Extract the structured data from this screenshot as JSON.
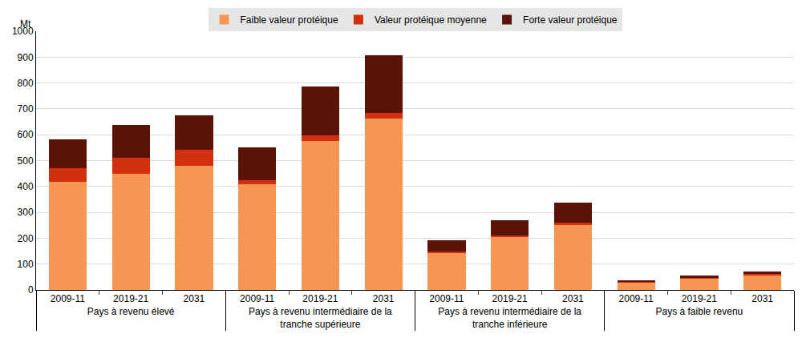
{
  "chart_data": {
    "type": "bar",
    "stacked": true,
    "y_label": "Mt",
    "category_groups": [
      "Pays à revenu élevé",
      "Pays à revenu élevé",
      "Pays à revenu élevé",
      "Pays à revenu intermédiaire de la tranche supérieure",
      "Pays à revenu intermédiaire de la tranche supérieure",
      "Pays à revenu intermédiaire de la tranche supérieure",
      "Pays à revenu intermédiaire de la tranche inférieure",
      "Pays à revenu intermédiaire de la tranche inférieure",
      "Pays à revenu intermédiaire de la tranche inférieure",
      "Pays à faible revenu",
      "Pays à faible revenu",
      "Pays à faible revenu"
    ],
    "categories": [
      "2009-11",
      "2019-21",
      "2031",
      "2009-11",
      "2019-21",
      "2031",
      "2009-11",
      "2019-21",
      "2031",
      "2009-11",
      "2019-21",
      "2031"
    ],
    "series": [
      {
        "name": "Faible valeur protéique",
        "color": "#f79553",
        "values": [
          418,
          450,
          480,
          408,
          577,
          663,
          145,
          203,
          250,
          30,
          44,
          58
        ]
      },
      {
        "name": "Valeur protéique moyenne",
        "color": "#d12f0e",
        "values": [
          52,
          60,
          62,
          15,
          20,
          22,
          5,
          7,
          9,
          2,
          3,
          3
        ]
      },
      {
        "name": "Forte valeur protéique",
        "color": "#5b1305",
        "values": [
          113,
          127,
          133,
          127,
          190,
          222,
          42,
          60,
          77,
          3,
          8,
          9
        ]
      }
    ],
    "ylim": [
      0,
      1000
    ],
    "yticks": [
      0,
      100,
      200,
      300,
      400,
      500,
      600,
      700,
      800,
      900,
      1000
    ],
    "grid": true,
    "legend": "top"
  }
}
